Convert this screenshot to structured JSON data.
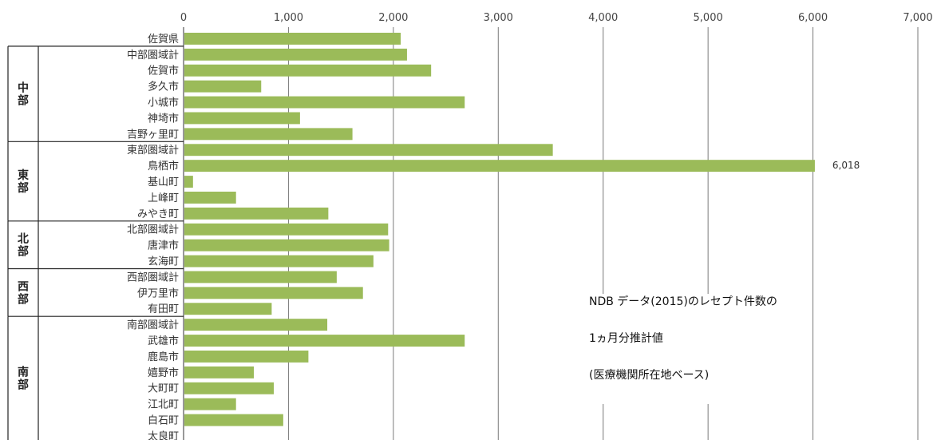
{
  "chart_data": {
    "type": "bar",
    "orientation": "horizontal",
    "title": "",
    "xlabel": "",
    "ylabel": "",
    "xlim": [
      0,
      7000
    ],
    "x_ticks": [
      "0",
      "1,000",
      "2,000",
      "3,000",
      "4,000",
      "5,000",
      "6,000",
      "7,000"
    ],
    "grid": "vertical",
    "bar_color": "#9bbb59",
    "categories": [
      "佐賀県",
      "中部圏域計",
      "佐賀市",
      "多久市",
      "小城市",
      "神埼市",
      "吉野ヶ里町",
      "東部圏域計",
      "鳥栖市",
      "基山町",
      "上峰町",
      "みやき町",
      "北部圏域計",
      "唐津市",
      "玄海町",
      "西部圏域計",
      "伊万里市",
      "有田町",
      "南部圏域計",
      "武雄市",
      "鹿島市",
      "嬉野市",
      "大町町",
      "江北町",
      "白石町",
      "太良町"
    ],
    "values": [
      2070,
      2130,
      2360,
      740,
      2680,
      1110,
      1610,
      3520,
      6018,
      90,
      500,
      1380,
      1950,
      1960,
      1810,
      1460,
      1710,
      840,
      1370,
      2680,
      1190,
      670,
      860,
      500,
      950,
      0
    ],
    "data_labels": [
      {
        "category": "鳥栖市",
        "text": "6,018"
      }
    ],
    "groups": [
      {
        "label": "中\n部",
        "start": 1,
        "end": 6
      },
      {
        "label": "東\n部",
        "start": 7,
        "end": 11
      },
      {
        "label": "北\n部",
        "start": 12,
        "end": 14
      },
      {
        "label": "西\n部",
        "start": 15,
        "end": 17
      },
      {
        "label": "南\n部",
        "start": 18,
        "end": 25
      }
    ],
    "annotation": [
      "NDB データ(2015)のレセプト件数の",
      "1ヵ月分推計値",
      "(医療機関所在地ベース)"
    ]
  }
}
